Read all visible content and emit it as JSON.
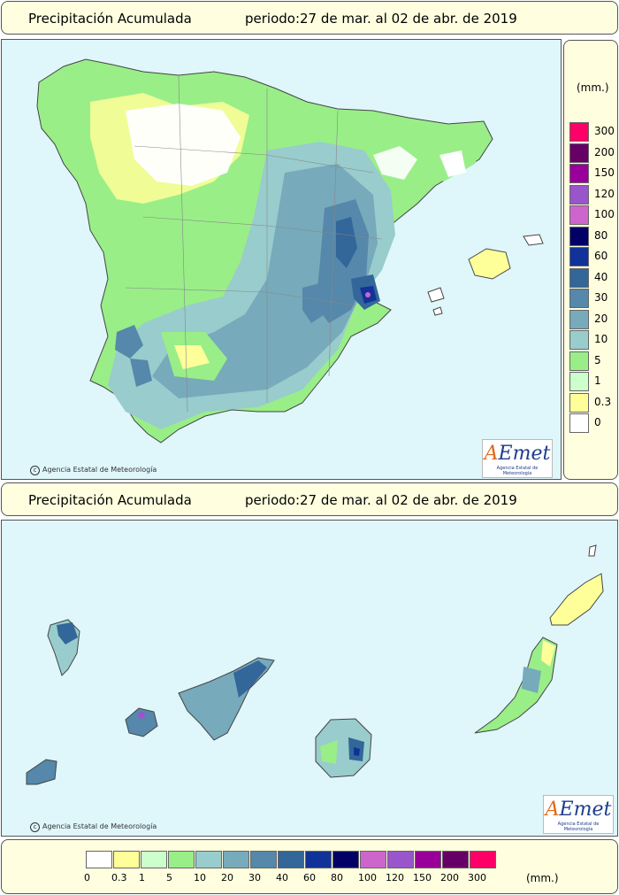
{
  "top_header": {
    "title": "Precipitación Acumulada",
    "period": "periodo:27 de mar. al 02 de abr. de 2019"
  },
  "bottom_header": {
    "title": "Precipitación Acumulada",
    "period": "periodo:27 de mar. al 02 de abr. de 2019"
  },
  "credit_text": "Agencia Estatal de Meteorología",
  "logo": {
    "text": "AEmet",
    "subtitle": "Agencia Estatal de Meteorología"
  },
  "legend": {
    "unit": "(mm.)",
    "classes": [
      {
        "label": "0",
        "color": "#ffffff"
      },
      {
        "label": "0.3",
        "color": "#ffff99"
      },
      {
        "label": "1",
        "color": "#ccffcc"
      },
      {
        "label": "5",
        "color": "#99ee88"
      },
      {
        "label": "10",
        "color": "#99cccc"
      },
      {
        "label": "20",
        "color": "#77aabb"
      },
      {
        "label": "30",
        "color": "#5588aa"
      },
      {
        "label": "40",
        "color": "#336699"
      },
      {
        "label": "60",
        "color": "#113399"
      },
      {
        "label": "80",
        "color": "#000066"
      },
      {
        "label": "100",
        "color": "#cc66cc"
      },
      {
        "label": "120",
        "color": "#9955cc"
      },
      {
        "label": "150",
        "color": "#990099"
      },
      {
        "label": "200",
        "color": "#660066"
      },
      {
        "label": "300",
        "color": "#ff0066"
      }
    ]
  },
  "colors": {
    "sea": "#dff6fb",
    "panel": "#ffffe0",
    "border": "#555555"
  }
}
